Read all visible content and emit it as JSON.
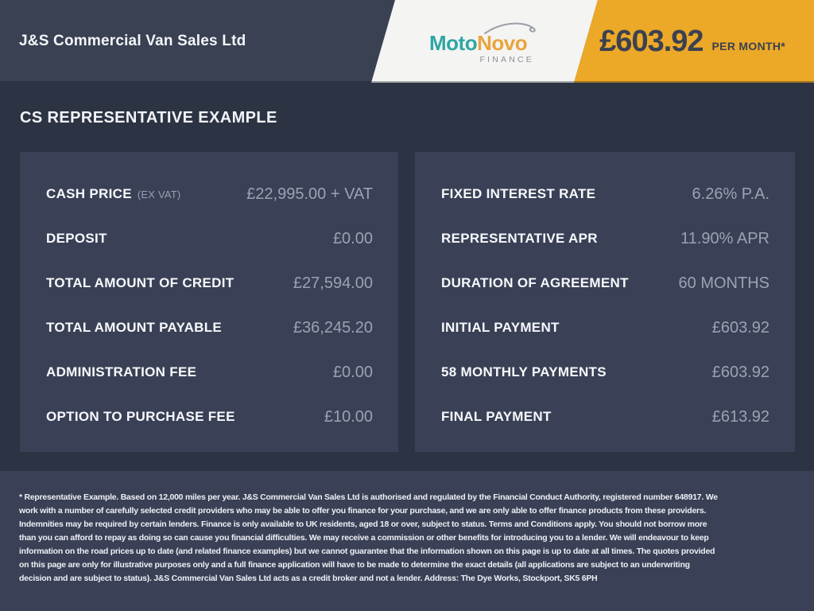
{
  "header": {
    "dealer_name": "J&S Commercial Van Sales Ltd",
    "logo": {
      "moto": "Moto",
      "novo": "Novo",
      "finance": "FINANCE"
    },
    "price": "£603.92",
    "price_suffix": "PER MONTH*"
  },
  "title": "CS REPRESENTATIVE EXAMPLE",
  "panels": {
    "left": {
      "rows": [
        {
          "label": "CASH PRICE",
          "sub": "(EX VAT)",
          "value": "£22,995.00 + VAT"
        },
        {
          "label": "DEPOSIT",
          "sub": "",
          "value": "£0.00"
        },
        {
          "label": "TOTAL AMOUNT OF CREDIT",
          "sub": "",
          "value": "£27,594.00"
        },
        {
          "label": "TOTAL AMOUNT PAYABLE",
          "sub": "",
          "value": "£36,245.20"
        },
        {
          "label": "ADMINISTRATION FEE",
          "sub": "",
          "value": "£0.00"
        },
        {
          "label": "OPTION TO PURCHASE FEE",
          "sub": "",
          "value": "£10.00"
        }
      ]
    },
    "right": {
      "rows": [
        {
          "label": "FIXED INTEREST RATE",
          "sub": "",
          "value": "6.26% P.A."
        },
        {
          "label": "REPRESENTATIVE APR",
          "sub": "",
          "value": "11.90% APR"
        },
        {
          "label": "DURATION OF AGREEMENT",
          "sub": "",
          "value": "60 MONTHS"
        },
        {
          "label": "INITIAL PAYMENT",
          "sub": "",
          "value": "£603.92"
        },
        {
          "label": "58 MONTHLY PAYMENTS",
          "sub": "",
          "value": "£603.92"
        },
        {
          "label": "FINAL PAYMENT",
          "sub": "",
          "value": "£613.92"
        }
      ]
    }
  },
  "footer": {
    "text": "* Representative Example. Based on 12,000 miles per year. J&S Commercial Van Sales Ltd is authorised and regulated by the Financial Conduct Authority, registered number 648917. We work with a number of carefully selected credit providers who may be able to offer you finance for your purchase, and we are only able to offer finance products from these providers. Indemnities may be required by certain lenders. Finance is only available to UK residents, aged 18 or over, subject to status. Terms and Conditions apply. You should not borrow more than you can afford to repay as doing so can cause you financial difficulties. We may receive a commission or other benefits for introducing you to a lender. We will endeavour to keep information on the road prices up to date (and related finance examples) but we cannot guarantee that the information shown on this page is up to date at all times. The quotes provided on this page are only for illustrative purposes only and a full finance application will have to be made to determine the exact details (all applications are subject to an underwriting decision and are subject to status). J&S Commercial Van Sales Ltd acts as a credit broker and not a lender. Address: The Dye Works, Stockport, SK5 6PH"
  },
  "colors": {
    "header_navy": "#3a4153",
    "body_navy": "#2c3343",
    "panel_navy": "#3a4156",
    "gold": "#eca827",
    "band_white": "#f4f4f2",
    "value_gray": "#9aa2b5",
    "logo_teal": "#2ea7a5",
    "logo_orange": "#e9a43e",
    "price_dark": "#3b4150"
  }
}
